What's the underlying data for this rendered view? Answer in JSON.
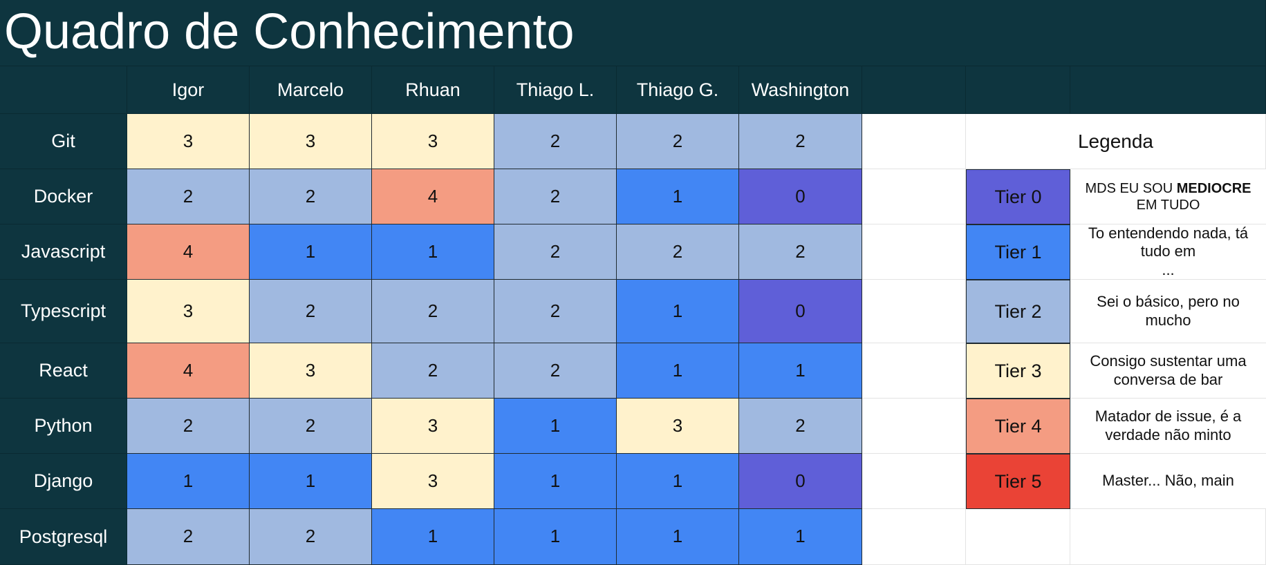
{
  "title": "Quadro de Conhecimento",
  "columns": [
    "Igor",
    "Marcelo",
    "Rhuan",
    "Thiago L.",
    "Thiago G.",
    "Washington"
  ],
  "rows": [
    {
      "label": "Git",
      "values": [
        "3",
        "3",
        "3",
        "2",
        "2",
        "2"
      ]
    },
    {
      "label": "Docker",
      "values": [
        "2",
        "2",
        "4",
        "2",
        "1",
        "0"
      ]
    },
    {
      "label": "Javascript",
      "values": [
        "4",
        "1",
        "1",
        "2",
        "2",
        "2"
      ]
    },
    {
      "label": "Typescript",
      "values": [
        "3",
        "2",
        "2",
        "2",
        "1",
        "0"
      ]
    },
    {
      "label": "React",
      "values": [
        "4",
        "3",
        "2",
        "2",
        "1",
        "1"
      ]
    },
    {
      "label": "Python",
      "values": [
        "2",
        "2",
        "3",
        "1",
        "3",
        "2"
      ]
    },
    {
      "label": "Django",
      "values": [
        "1",
        "1",
        "3",
        "1",
        "1",
        "0"
      ]
    },
    {
      "label": "Postgresql",
      "values": [
        "2",
        "2",
        "1",
        "1",
        "1",
        "1"
      ]
    }
  ],
  "tier_colors": {
    "0": "#5f5fd8",
    "1": "#4286f4",
    "2": "#a0b9e0",
    "3": "#fff2cc",
    "4": "#f49c82",
    "5": "#ea4336"
  },
  "legend": {
    "title": "Legenda",
    "items": [
      {
        "tier": "Tier 0",
        "level": "0",
        "desc_parts": [
          "MDS EU SOU ",
          "MEDIOCRE",
          " EM TUDO"
        ]
      },
      {
        "tier": "Tier 1",
        "level": "1",
        "desc_lines": [
          "To entendendo nada, tá",
          "tudo em",
          "..."
        ]
      },
      {
        "tier": "Tier 2",
        "level": "2",
        "desc_lines": [
          "Sei o básico, pero no",
          "mucho"
        ]
      },
      {
        "tier": "Tier 3",
        "level": "3",
        "desc_lines": [
          "Consigo sustentar uma",
          "conversa de bar"
        ]
      },
      {
        "tier": "Tier 4",
        "level": "4",
        "desc_lines": [
          "Matador de issue, é a",
          "verdade não minto"
        ]
      },
      {
        "tier": "Tier 5",
        "level": "5",
        "desc_lines": [
          "Master... Não, main"
        ]
      }
    ]
  }
}
